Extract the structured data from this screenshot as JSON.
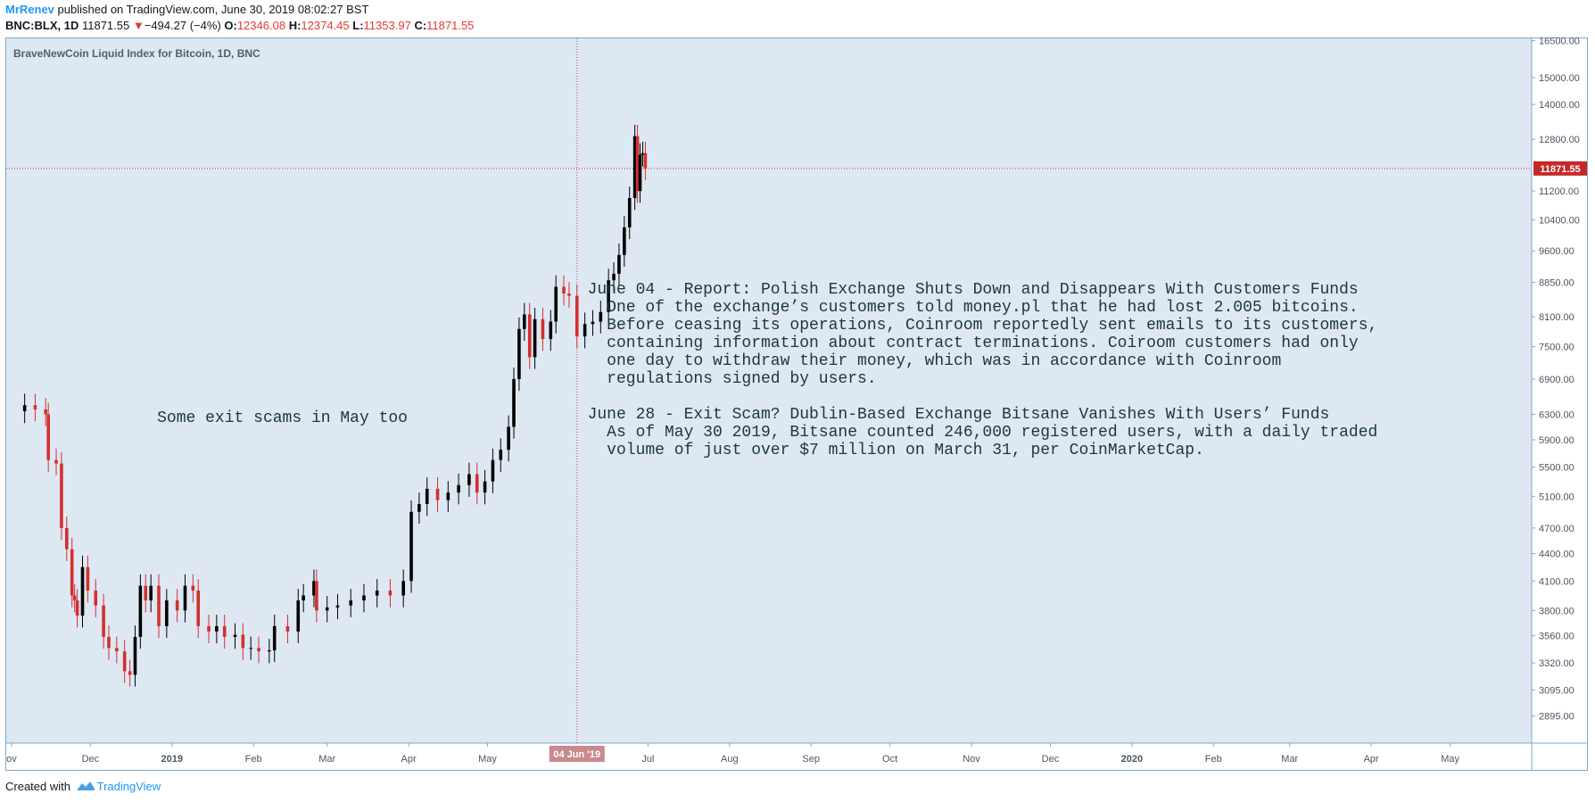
{
  "header": {
    "author": "MrRenev",
    "published": "published on TradingView.com, June 30, 2019 08:02:27 BST",
    "symbol": "BNC:BLX, 1D",
    "last": "11871.55",
    "change_arrow": "▼",
    "change": "−494.27 (−4%)",
    "o_label": "O:",
    "o_val": "12346.08",
    "h_label": "H:",
    "h_val": "12374.45",
    "l_label": "L:",
    "l_val": "11353.97",
    "c_label": "C:",
    "c_val": "11871.55"
  },
  "footer": {
    "created_with": "Created with",
    "brand": "TradingView"
  },
  "colors": {
    "plot_bg": "#dde8f3",
    "up": "#000000",
    "down": "#d32f2f",
    "price_line": "#d32f2f",
    "badge": "#c62828",
    "date_badge": "#c98a8f"
  },
  "chart_data": {
    "type": "candlestick",
    "title": "BraveNewCoin Liquid Index for Bitcoin, 1D, BNC",
    "y_scale": "log",
    "ylim": [
      2700,
      16600
    ],
    "x_range": [
      "2018-10-30",
      "2020-06-01"
    ],
    "y_ticks": [
      "16500.00",
      "15000.00",
      "14000.00",
      "12800.00",
      "11200.00",
      "10400.00",
      "9600.00",
      "8850.00",
      "8100.00",
      "7500.00",
      "6900.00",
      "6300.00",
      "5900.00",
      "5500.00",
      "5100.00",
      "4700.00",
      "4400.00",
      "4100.00",
      "3800.00",
      "3560.00",
      "3320.00",
      "3095.00",
      "2895.00"
    ],
    "x_ticks": [
      {
        "date": "2018-11-01",
        "label": "ov",
        "bold": false
      },
      {
        "date": "2018-12-01",
        "label": "Dec",
        "bold": false
      },
      {
        "date": "2019-01-01",
        "label": "2019",
        "bold": true
      },
      {
        "date": "2019-02-01",
        "label": "Feb",
        "bold": false
      },
      {
        "date": "2019-03-01",
        "label": "Mar",
        "bold": false
      },
      {
        "date": "2019-04-01",
        "label": "Apr",
        "bold": false
      },
      {
        "date": "2019-05-01",
        "label": "May",
        "bold": false
      },
      {
        "date": "2019-07-01",
        "label": "Jul",
        "bold": false
      },
      {
        "date": "2019-08-01",
        "label": "Aug",
        "bold": false
      },
      {
        "date": "2019-09-01",
        "label": "Sep",
        "bold": false
      },
      {
        "date": "2019-10-01",
        "label": "Oct",
        "bold": false
      },
      {
        "date": "2019-11-01",
        "label": "Nov",
        "bold": false
      },
      {
        "date": "2019-12-01",
        "label": "Dec",
        "bold": false
      },
      {
        "date": "2020-01-01",
        "label": "2020",
        "bold": true
      },
      {
        "date": "2020-02-01",
        "label": "Feb",
        "bold": false
      },
      {
        "date": "2020-03-01",
        "label": "Mar",
        "bold": false
      },
      {
        "date": "2020-04-01",
        "label": "Apr",
        "bold": false
      },
      {
        "date": "2020-05-01",
        "label": "May",
        "bold": false
      }
    ],
    "last_price": 11871.55,
    "last_price_label": "11871.55",
    "crosshair": {
      "date": "2019-06-04",
      "label": "04 Jun '19"
    },
    "series_close": [
      [
        "2018-11-01",
        6350
      ],
      [
        "2018-11-06",
        6450
      ],
      [
        "2018-11-10",
        6380
      ],
      [
        "2018-11-14",
        6300
      ],
      [
        "2018-11-15",
        5600
      ],
      [
        "2018-11-18",
        5550
      ],
      [
        "2018-11-20",
        4700
      ],
      [
        "2018-11-22",
        4450
      ],
      [
        "2018-11-24",
        3950
      ],
      [
        "2018-11-25",
        3900
      ],
      [
        "2018-11-26",
        3750
      ],
      [
        "2018-11-28",
        4250
      ],
      [
        "2018-11-30",
        4000
      ],
      [
        "2018-12-03",
        3850
      ],
      [
        "2018-12-06",
        3550
      ],
      [
        "2018-12-08",
        3450
      ],
      [
        "2018-12-11",
        3420
      ],
      [
        "2018-12-14",
        3250
      ],
      [
        "2018-12-16",
        3220
      ],
      [
        "2018-12-18",
        3550
      ],
      [
        "2018-12-20",
        4050
      ],
      [
        "2018-12-22",
        3900
      ],
      [
        "2018-12-24",
        4050
      ],
      [
        "2018-12-27",
        3650
      ],
      [
        "2018-12-30",
        3900
      ],
      [
        "2019-01-03",
        3800
      ],
      [
        "2019-01-06",
        4050
      ],
      [
        "2019-01-09",
        4000
      ],
      [
        "2019-01-11",
        3650
      ],
      [
        "2019-01-15",
        3600
      ],
      [
        "2019-01-18",
        3650
      ],
      [
        "2019-01-21",
        3550
      ],
      [
        "2019-01-25",
        3570
      ],
      [
        "2019-01-28",
        3450
      ],
      [
        "2019-01-31",
        3450
      ],
      [
        "2019-02-03",
        3420
      ],
      [
        "2019-02-07",
        3430
      ],
      [
        "2019-02-09",
        3650
      ],
      [
        "2019-02-14",
        3600
      ],
      [
        "2019-02-18",
        3900
      ],
      [
        "2019-02-20",
        3950
      ],
      [
        "2019-02-24",
        4100
      ],
      [
        "2019-02-25",
        3800
      ],
      [
        "2019-03-01",
        3830
      ],
      [
        "2019-03-05",
        3850
      ],
      [
        "2019-03-10",
        3900
      ],
      [
        "2019-03-15",
        3950
      ],
      [
        "2019-03-20",
        4000
      ],
      [
        "2019-03-25",
        3950
      ],
      [
        "2019-03-30",
        4100
      ],
      [
        "2019-04-02",
        4900
      ],
      [
        "2019-04-05",
        5000
      ],
      [
        "2019-04-08",
        5200
      ],
      [
        "2019-04-12",
        5050
      ],
      [
        "2019-04-16",
        5150
      ],
      [
        "2019-04-20",
        5250
      ],
      [
        "2019-04-24",
        5400
      ],
      [
        "2019-04-27",
        5150
      ],
      [
        "2019-04-30",
        5300
      ],
      [
        "2019-05-03",
        5600
      ],
      [
        "2019-05-06",
        5750
      ],
      [
        "2019-05-09",
        6100
      ],
      [
        "2019-05-11",
        6900
      ],
      [
        "2019-05-13",
        7850
      ],
      [
        "2019-05-15",
        8150
      ],
      [
        "2019-05-17",
        7300
      ],
      [
        "2019-05-19",
        8050
      ],
      [
        "2019-05-22",
        7650
      ],
      [
        "2019-05-25",
        8000
      ],
      [
        "2019-05-27",
        8750
      ],
      [
        "2019-05-30",
        8600
      ],
      [
        "2019-06-01",
        8550
      ],
      [
        "2019-06-04",
        7700
      ],
      [
        "2019-06-07",
        7950
      ],
      [
        "2019-06-10",
        8000
      ],
      [
        "2019-06-13",
        8200
      ],
      [
        "2019-06-16",
        8900
      ],
      [
        "2019-06-18",
        9050
      ],
      [
        "2019-06-20",
        9500
      ],
      [
        "2019-06-22",
        10200
      ],
      [
        "2019-06-24",
        11000
      ],
      [
        "2019-06-26",
        12900
      ],
      [
        "2019-06-27",
        11200
      ],
      [
        "2019-06-28",
        12300
      ],
      [
        "2019-06-29",
        12350
      ],
      [
        "2019-06-30",
        11871.55
      ]
    ],
    "annotations": [
      {
        "date": "2019-02-12",
        "price": 6180,
        "align": "middle",
        "lines": [
          "Some exit scams in May too"
        ]
      },
      {
        "date": "2019-06-08",
        "price": 8600,
        "align": "start",
        "lines": [
          "June 04 - Report: Polish Exchange Shuts Down and Disappears With Customers Funds",
          "  One of the exchange’s customers told money.pl that he had lost 2.005 bitcoins.",
          "  Before ceasing its operations, Coinroom reportedly sent emails to its customers,",
          "  containing information about contract terminations. Coiroom customers had only",
          "  one day to withdraw their money, which was in accordance with Coinroom",
          "  regulations signed by users.",
          "",
          "June 28 - Exit Scam? Dublin-Based Exchange Bitsane Vanishes With Users’ Funds",
          "  As of May 30 2019, Bitsane counted 246,000 registered users, with a daily traded",
          "  volume of just over $7 million on March 31, per CoinMarketCap."
        ]
      }
    ]
  }
}
